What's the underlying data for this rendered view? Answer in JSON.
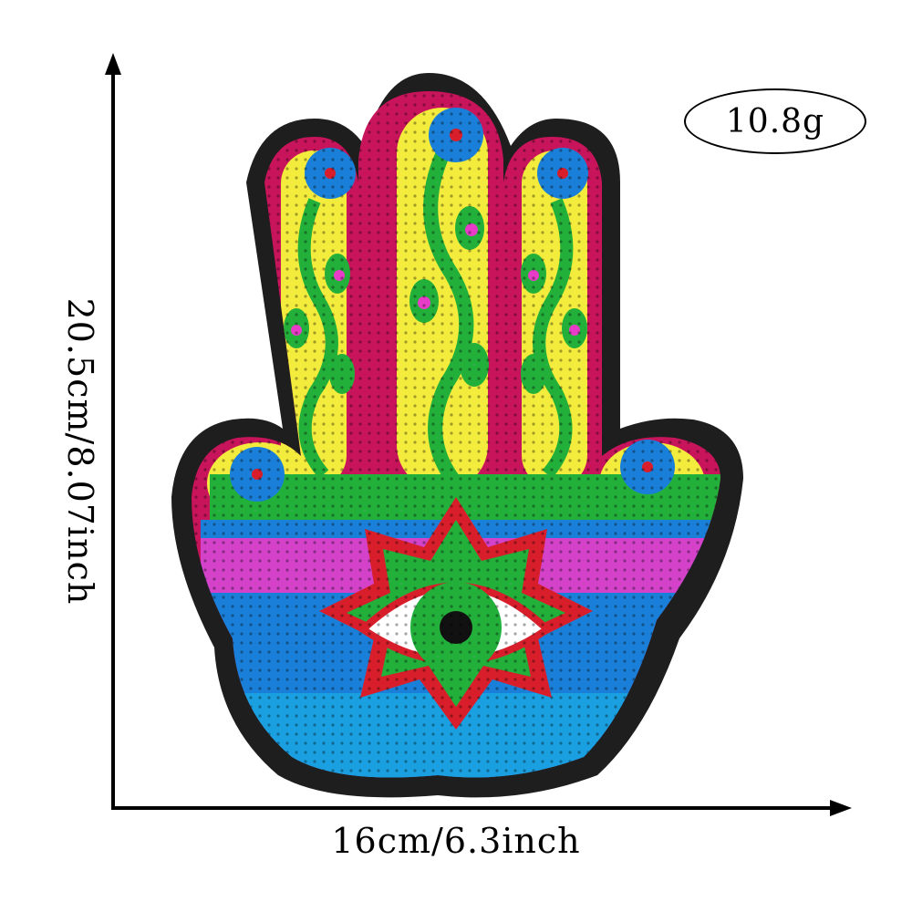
{
  "dimensions": {
    "height_label": "20.5cm/8.07inch",
    "width_label": "16cm/6.3inch",
    "weight_label": "10.8g"
  },
  "patch": {
    "colors": {
      "felt": "#1e1e1e",
      "border": "#c8145a",
      "yellow": "#f4ec3c",
      "green": "#22b03a",
      "blue": "#1a7fd8",
      "pink": "#e83cc8",
      "red": "#d81e2a",
      "white": "#ffffff"
    },
    "icons": {
      "subject": "hamsa-hand-icon",
      "eye": "evil-eye-icon",
      "flower": "flower-icon"
    }
  }
}
